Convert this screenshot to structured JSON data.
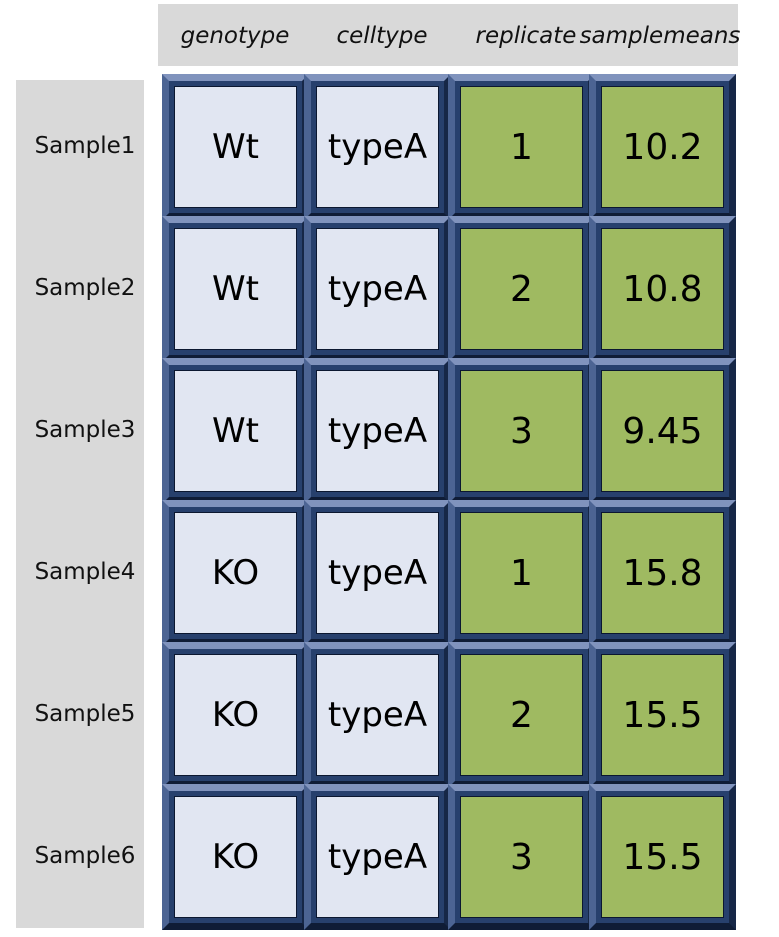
{
  "columns": [
    "genotype",
    "celltype",
    "replicate",
    "samplemeans"
  ],
  "rows": [
    {
      "label": "Sample1",
      "cells": [
        "Wt",
        "typeA",
        "1",
        "10.2"
      ]
    },
    {
      "label": "Sample2",
      "cells": [
        "Wt",
        "typeA",
        "2",
        "10.8"
      ]
    },
    {
      "label": "Sample3",
      "cells": [
        "Wt",
        "typeA",
        "3",
        "9.45"
      ]
    },
    {
      "label": "Sample4",
      "cells": [
        "KO",
        "typeA",
        "1",
        "15.8"
      ]
    },
    {
      "label": "Sample5",
      "cells": [
        "KO",
        "typeA",
        "2",
        "15.5"
      ]
    },
    {
      "label": "Sample6",
      "cells": [
        "KO",
        "typeA",
        "3",
        "15.5"
      ]
    }
  ],
  "colors": {
    "header_background": "#d9d9d9",
    "cell_frame": "#27406d",
    "cell_light": "#e1e6f2",
    "cell_green": "#9fba61"
  }
}
